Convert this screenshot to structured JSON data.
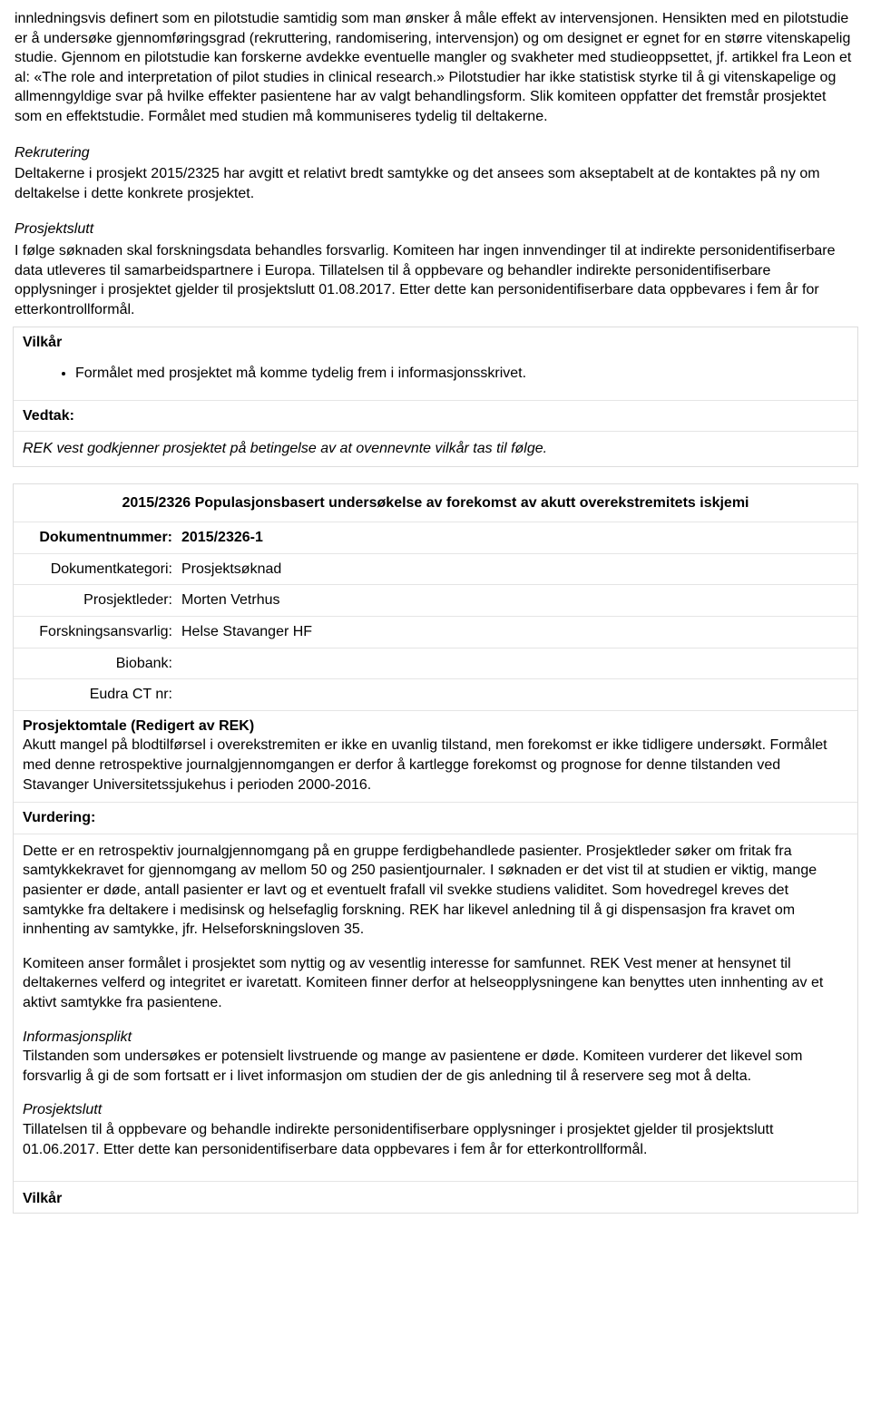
{
  "section1": {
    "intro_para": "innledningsvis definert som en pilotstudie samtidig som man ønsker å måle effekt av intervensjonen. Hensikten med en pilotstudie er å undersøke gjennomføringsgrad (rekruttering, randomisering, intervensjon) og om designet er egnet for en større vitenskapelig studie. Gjennom en pilotstudie kan forskerne avdekke eventuelle mangler og svakheter med studieoppsettet, jf. artikkel fra Leon et al: «The role and interpretation of pilot studies in clinical research.» Pilotstudier har ikke statistisk styrke til å gi vitenskapelige og allmenngyldige svar på hvilke effekter pasientene har av valgt behandlingsform. Slik komiteen oppfatter det fremstår prosjektet som en effektstudie. Formålet med studien må kommuniseres tydelig til deltakerne.",
    "rekrutering_heading": "Rekrutering",
    "rekrutering_body": "Deltakerne i prosjekt 2015/2325 har avgitt et relativt bredt samtykke og det ansees som akseptabelt at de kontaktes på ny om deltakelse i dette konkrete prosjektet.",
    "prosjektslutt_heading": "Prosjektslutt",
    "prosjektslutt_body": "I følge søknaden skal forskningsdata behandles forsvarlig. Komiteen har ingen innvendinger til at indirekte personidentifiserbare data utleveres til samarbeidspartnere i Europa. Tillatelsen til å oppbevare og behandler indirekte personidentifiserbare opplysninger i prosjektet gjelder til prosjektslutt 01.08.2017. Etter dette kan personidentifiserbare data oppbevares i fem år for etterkontrollformål.",
    "vilkar_heading": "Vilkår",
    "vilkar_bullet": "Formålet med prosjektet må komme tydelig frem i informasjonsskrivet.",
    "vedtak_heading": "Vedtak:",
    "vedtak_body": "REK vest godkjenner prosjektet på betingelse av at ovennevnte vilkår tas til følge."
  },
  "section2": {
    "title": "2015/2326 Populasjonsbasert undersøkelse av forekomst av akutt overekstremitets iskjemi",
    "fields": {
      "dokumentnummer_label": "Dokumentnummer:",
      "dokumentnummer_value": "2015/2326-1",
      "dokumentkategori_label": "Dokumentkategori:",
      "dokumentkategori_value": "Prosjektsøknad",
      "prosjektleder_label": "Prosjektleder:",
      "prosjektleder_value": "Morten Vetrhus",
      "forskningsansvarlig_label": "Forskningsansvarlig:",
      "forskningsansvarlig_value": "Helse Stavanger HF",
      "biobank_label": "Biobank:",
      "biobank_value": "",
      "eudra_label": "Eudra CT nr:",
      "eudra_value": ""
    },
    "prosjektomtale_heading": "Prosjektomtale (Redigert av REK)",
    "prosjektomtale_body": "Akutt mangel på blodtilførsel i overekstremiten er ikke en uvanlig tilstand, men forekomst er ikke tidligere undersøkt. Formålet med denne retrospektive journalgjennomgangen er derfor å kartlegge forekomst og prognose for denne tilstanden ved Stavanger Universitetssjukehus i perioden 2000-2016.",
    "vurdering_heading": "Vurdering:",
    "assessment_p1": "Dette er en retrospektiv journalgjennomgang på en gruppe ferdigbehandlede pasienter. Prosjektleder søker om fritak fra samtykkekravet for gjennomgang av mellom 50 og 250 pasientjournaler. I søknaden er det vist til at studien er viktig, mange pasienter er døde, antall pasienter er lavt og et eventuelt frafall vil svekke studiens validitet. Som hovedregel kreves det samtykke fra deltakere i medisinsk og helsefaglig forskning. REK har likevel anledning til å gi dispensasjon fra kravet om innhenting av samtykke, jfr. Helseforskningsloven 35.",
    "assessment_p2": "Komiteen anser formålet i prosjektet som nyttig og av vesentlig interesse for samfunnet. REK Vest mener at hensynet til deltakernes velferd og integritet er ivaretatt. Komiteen finner derfor at helseopplysningene kan benyttes uten innhenting av et aktivt samtykke fra pasientene.",
    "info_heading": "Informasjonsplikt",
    "info_body": "Tilstanden som undersøkes er potensielt livstruende og mange av pasientene er døde. Komiteen vurderer det likevel som forsvarlig å gi de som fortsatt er i livet informasjon om studien der de gis anledning til å reservere seg mot å delta.",
    "prosjektslutt_heading": "Prosjektslutt",
    "prosjektslutt_body": "Tillatelsen til å oppbevare og behandle indirekte personidentifiserbare opplysninger i prosjektet gjelder til prosjektslutt 01.06.2017. Etter dette kan personidentifiserbare data oppbevares i fem år for etterkontrollformål.",
    "vilkar_heading": "Vilkår"
  }
}
